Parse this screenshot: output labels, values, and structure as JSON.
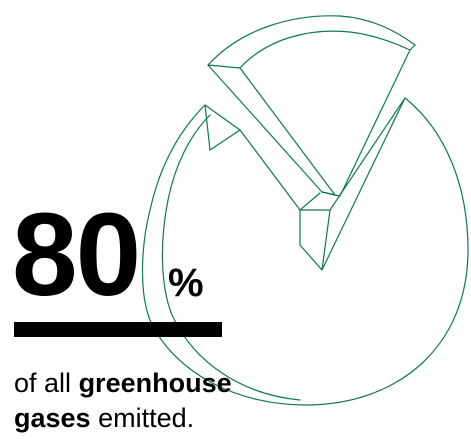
{
  "stat": {
    "value": "80",
    "unit": "%",
    "caption_lead": "of all",
    "caption_bold_1": "greenhouse",
    "caption_bold_2": "gases",
    "caption_tail": "emitted."
  },
  "colors": {
    "accent": "#0e7a4d",
    "text": "#000000",
    "background": "#ffffff"
  },
  "illustration": {
    "icon": "exploded-pie-chart-icon",
    "slice_share": 0.8
  }
}
